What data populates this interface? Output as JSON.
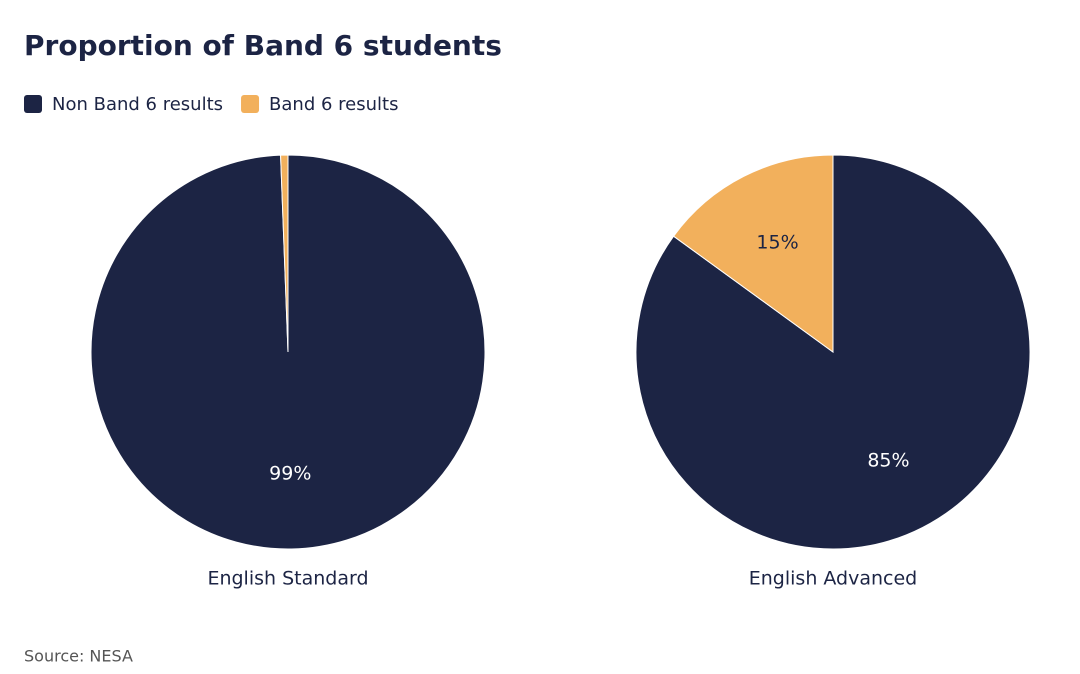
{
  "title": "Proportion of Band 6 students",
  "source": "Source: NESA",
  "chart_data": [
    {
      "type": "pie",
      "title": "English Standard",
      "categories": [
        "Non Band 6 results",
        "Band 6 results"
      ],
      "colors": [
        "#1c2444",
        "#f2b05c"
      ],
      "values": [
        99.4,
        0.6
      ],
      "value_labels": [
        "99%",
        null
      ]
    },
    {
      "type": "pie",
      "title": "English Advanced",
      "categories": [
        "Non Band 6 results",
        "Band 6 results"
      ],
      "colors": [
        "#1c2444",
        "#f2b05c"
      ],
      "values": [
        85,
        15
      ],
      "value_labels": [
        "85%",
        "15%"
      ]
    }
  ]
}
